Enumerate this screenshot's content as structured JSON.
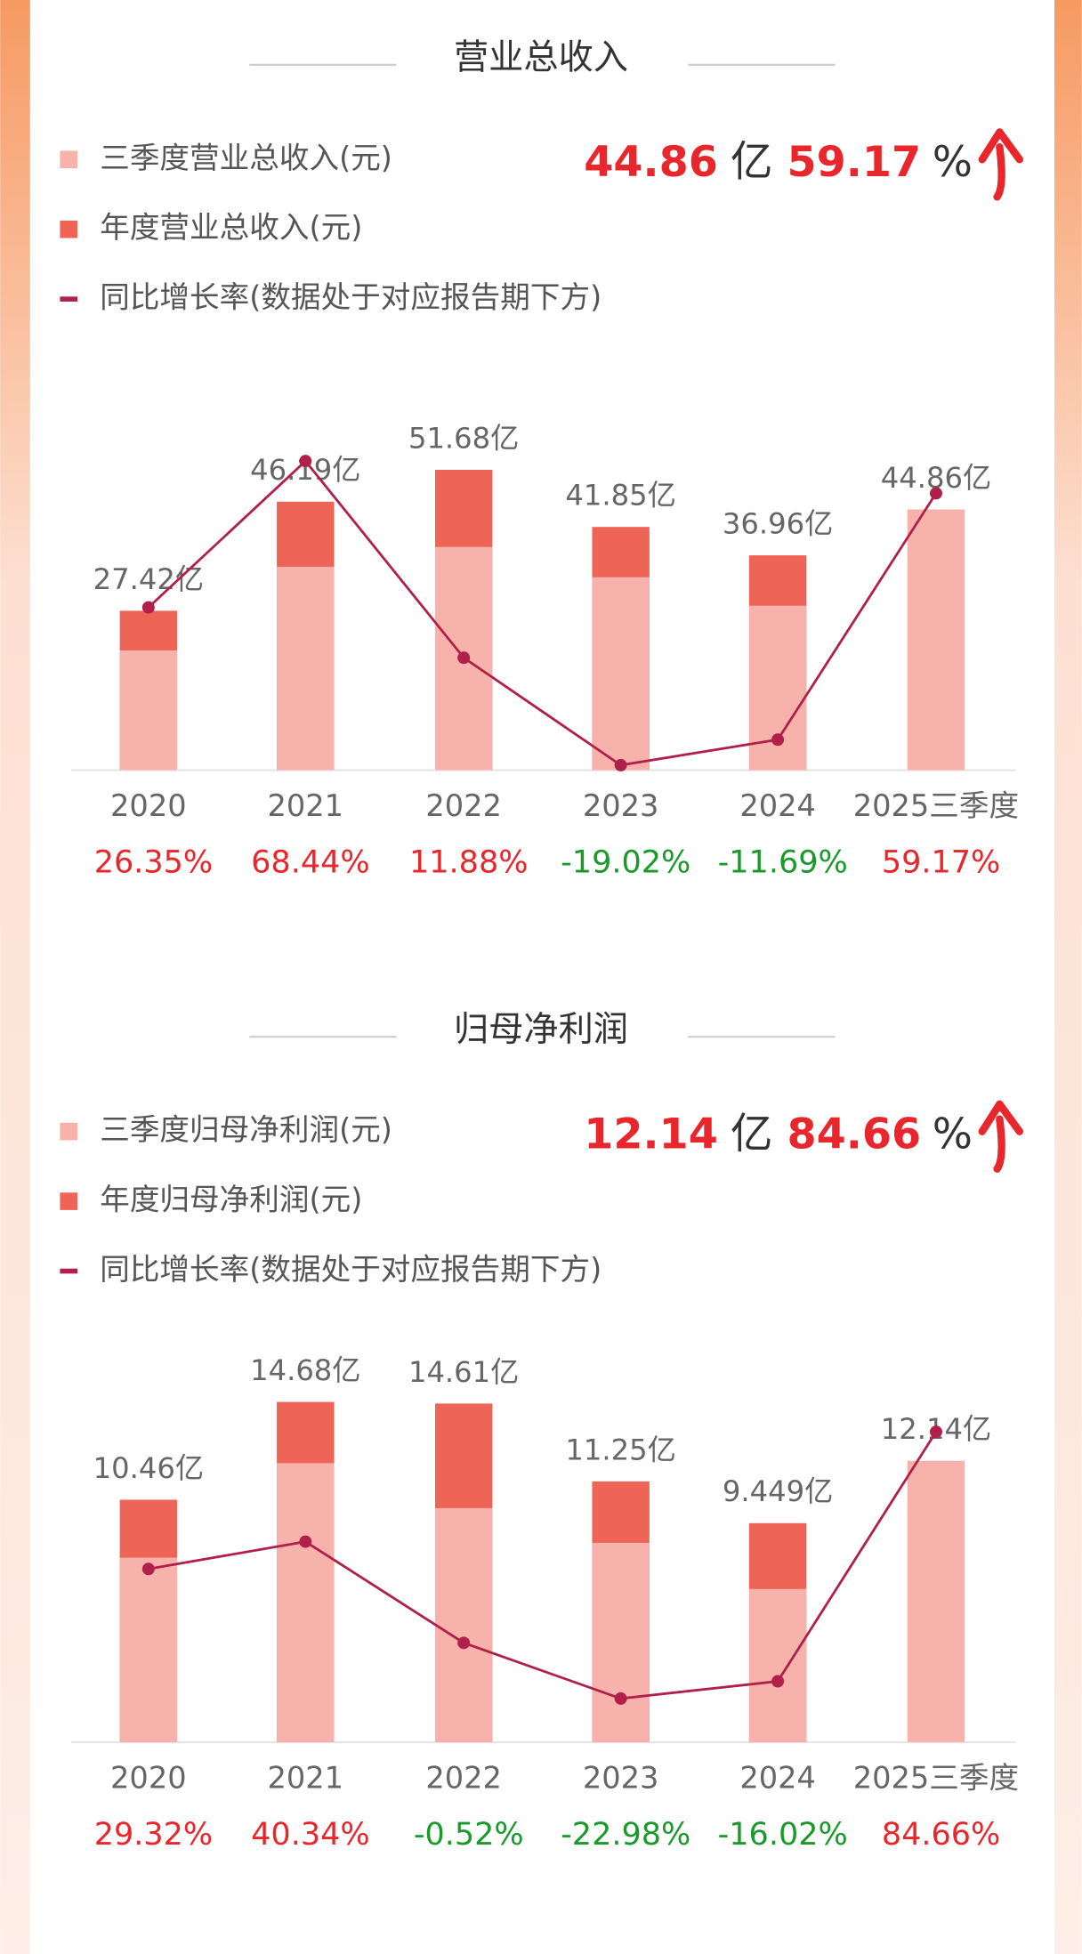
{
  "chart_data": [
    {
      "type": "bar-line",
      "title": "营业总收入",
      "headline": {
        "value": 44.86,
        "unit": "亿",
        "rate": 59.17,
        "rate_unit": "%"
      },
      "categories": [
        "2020",
        "2021",
        "2022",
        "2023",
        "2024",
        "2025三季度"
      ],
      "positive_color": "#e8262b",
      "negative_color": "#1a9a2a",
      "series": [
        {
          "name": "三季度营业总收入(元)",
          "color": "#f7b3ab",
          "values": [
            20.6,
            35.0,
            38.4,
            33.2,
            28.3,
            44.86
          ],
          "value_labels": [
            null,
            null,
            null,
            null,
            null,
            "44.86亿"
          ]
        },
        {
          "name": "年度营业总收入(元)",
          "color": "#ee6457",
          "values": [
            27.42,
            46.19,
            51.68,
            41.85,
            36.96,
            null
          ],
          "value_labels": [
            "27.42亿",
            "46.19亿",
            "51.68亿",
            "41.85亿",
            "36.96亿",
            null
          ]
        },
        {
          "name": "同比增长率(数据处于对应报告期下方)",
          "type": "line",
          "color": "#b0204a",
          "values": [
            26.35,
            68.44,
            11.88,
            -19.02,
            -11.69,
            59.17
          ],
          "value_labels": [
            "26.35%",
            "68.44%",
            "11.88%",
            "-19.02%",
            "-11.69%",
            "59.17%"
          ]
        }
      ]
    },
    {
      "type": "bar-line",
      "title": "归母净利润",
      "headline": {
        "value": 12.14,
        "unit": "亿",
        "rate": 84.66,
        "rate_unit": "%"
      },
      "categories": [
        "2020",
        "2021",
        "2022",
        "2023",
        "2024",
        "2025三季度"
      ],
      "positive_color": "#e8262b",
      "negative_color": "#1a9a2a",
      "series": [
        {
          "name": "三季度归母净利润(元)",
          "color": "#f7b3ab",
          "values": [
            7.96,
            12.04,
            10.1,
            8.6,
            6.61,
            12.14
          ],
          "value_labels": [
            null,
            null,
            null,
            null,
            null,
            "12.14亿"
          ]
        },
        {
          "name": "年度归母净利润(元)",
          "color": "#ee6457",
          "values": [
            10.46,
            14.68,
            14.61,
            11.25,
            9.449,
            null
          ],
          "value_labels": [
            "10.46亿",
            "14.68亿",
            "14.61亿",
            "11.25亿",
            "9.449亿",
            null
          ]
        },
        {
          "name": "同比增长率(数据处于对应报告期下方)",
          "type": "line",
          "color": "#b0204a",
          "values": [
            29.32,
            40.34,
            -0.52,
            -22.98,
            -16.02,
            84.66
          ],
          "value_labels": [
            "29.32%",
            "40.34%",
            "-0.52%",
            "-22.98%",
            "-16.02%",
            "84.66%"
          ]
        }
      ]
    }
  ]
}
